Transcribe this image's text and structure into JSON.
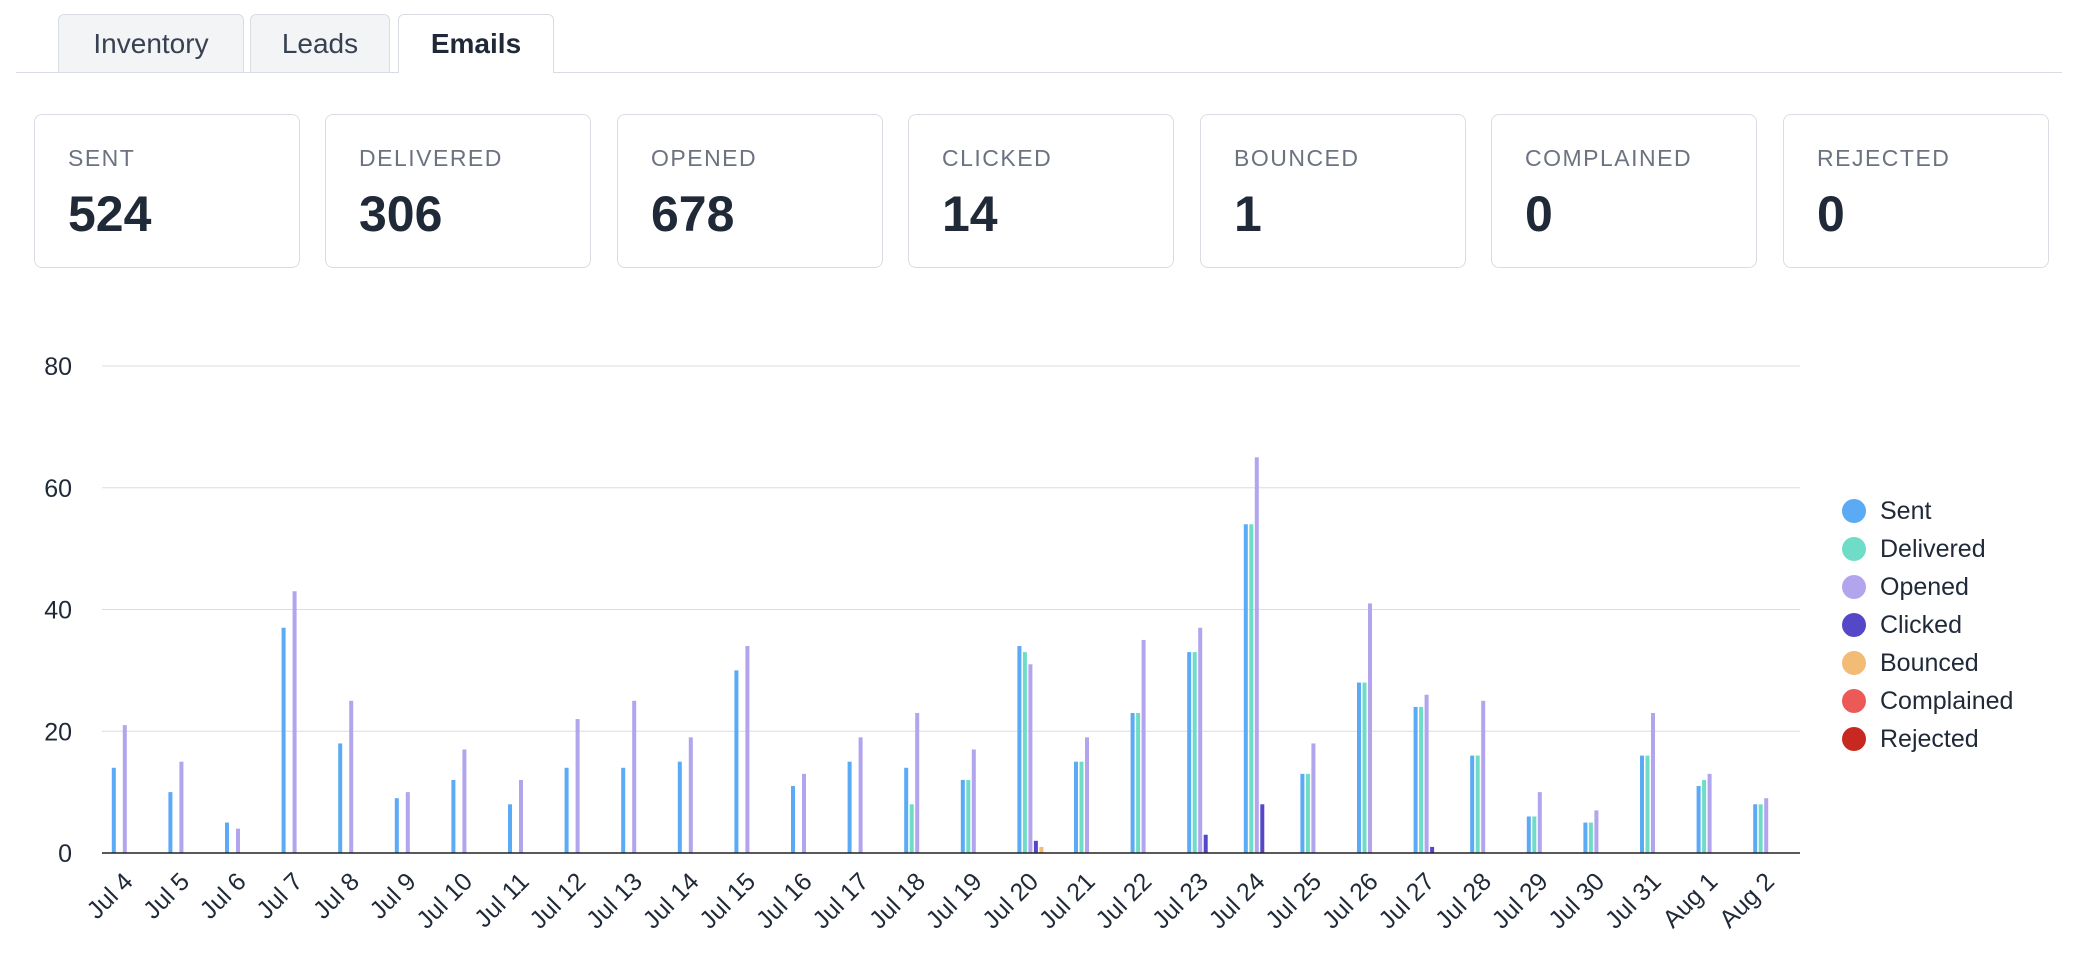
{
  "tabs": [
    {
      "label": "Inventory",
      "active": false
    },
    {
      "label": "Leads",
      "active": false
    },
    {
      "label": "Emails",
      "active": true
    }
  ],
  "stats": [
    {
      "label": "SENT",
      "value": "524"
    },
    {
      "label": "DELIVERED",
      "value": "306"
    },
    {
      "label": "OPENED",
      "value": "678"
    },
    {
      "label": "CLICKED",
      "value": "14"
    },
    {
      "label": "BOUNCED",
      "value": "1"
    },
    {
      "label": "COMPLAINED",
      "value": "0"
    },
    {
      "label": "REJECTED",
      "value": "0"
    }
  ],
  "colors": {
    "Sent": "#5aaaf5",
    "Delivered": "#6fdcc8",
    "Opened": "#b3a4ee",
    "Clicked": "#5448c8",
    "Bounced": "#f2bb76",
    "Complained": "#ec5a58",
    "Rejected": "#c7281f"
  },
  "chart_data": {
    "type": "bar",
    "title": "",
    "xlabel": "",
    "ylabel": "",
    "ylim": [
      0,
      80
    ],
    "yticks": [
      0,
      20,
      40,
      60,
      80
    ],
    "grid": true,
    "legend_position": "right",
    "categories": [
      "Jul 4",
      "Jul 5",
      "Jul 6",
      "Jul 7",
      "Jul 8",
      "Jul 9",
      "Jul 10",
      "Jul 11",
      "Jul 12",
      "Jul 13",
      "Jul 14",
      "Jul 15",
      "Jul 16",
      "Jul 17",
      "Jul 18",
      "Jul 19",
      "Jul 20",
      "Jul 21",
      "Jul 22",
      "Jul 23",
      "Jul 24",
      "Jul 25",
      "Jul 26",
      "Jul 27",
      "Jul 28",
      "Jul 29",
      "Jul 30",
      "Jul 31",
      "Aug 1",
      "Aug 2"
    ],
    "series": [
      {
        "name": "Sent",
        "values": [
          14,
          10,
          5,
          37,
          18,
          9,
          12,
          8,
          14,
          14,
          15,
          30,
          11,
          15,
          14,
          12,
          34,
          15,
          23,
          33,
          54,
          13,
          28,
          24,
          16,
          6,
          5,
          16,
          11,
          8
        ]
      },
      {
        "name": "Delivered",
        "values": [
          0,
          0,
          0,
          0,
          0,
          0,
          0,
          0,
          0,
          0,
          0,
          0,
          0,
          0,
          8,
          12,
          33,
          15,
          23,
          33,
          54,
          13,
          28,
          24,
          16,
          6,
          5,
          16,
          12,
          8
        ]
      },
      {
        "name": "Opened",
        "values": [
          21,
          15,
          4,
          43,
          25,
          10,
          17,
          12,
          22,
          25,
          19,
          34,
          13,
          19,
          23,
          17,
          31,
          19,
          35,
          37,
          65,
          18,
          41,
          26,
          25,
          10,
          7,
          23,
          13,
          9
        ]
      },
      {
        "name": "Clicked",
        "values": [
          0,
          0,
          0,
          0,
          0,
          0,
          0,
          0,
          0,
          0,
          0,
          0,
          0,
          0,
          0,
          0,
          2,
          0,
          0,
          3,
          8,
          0,
          0,
          1,
          0,
          0,
          0,
          0,
          0,
          0
        ]
      },
      {
        "name": "Bounced",
        "values": [
          0,
          0,
          0,
          0,
          0,
          0,
          0,
          0,
          0,
          0,
          0,
          0,
          0,
          0,
          0,
          0,
          1,
          0,
          0,
          0,
          0,
          0,
          0,
          0,
          0,
          0,
          0,
          0,
          0,
          0
        ]
      },
      {
        "name": "Complained",
        "values": [
          0,
          0,
          0,
          0,
          0,
          0,
          0,
          0,
          0,
          0,
          0,
          0,
          0,
          0,
          0,
          0,
          0,
          0,
          0,
          0,
          0,
          0,
          0,
          0,
          0,
          0,
          0,
          0,
          0,
          0
        ]
      },
      {
        "name": "Rejected",
        "values": [
          0,
          0,
          0,
          0,
          0,
          0,
          0,
          0,
          0,
          0,
          0,
          0,
          0,
          0,
          0,
          0,
          0,
          0,
          0,
          0,
          0,
          0,
          0,
          0,
          0,
          0,
          0,
          0,
          0,
          0
        ]
      }
    ]
  }
}
